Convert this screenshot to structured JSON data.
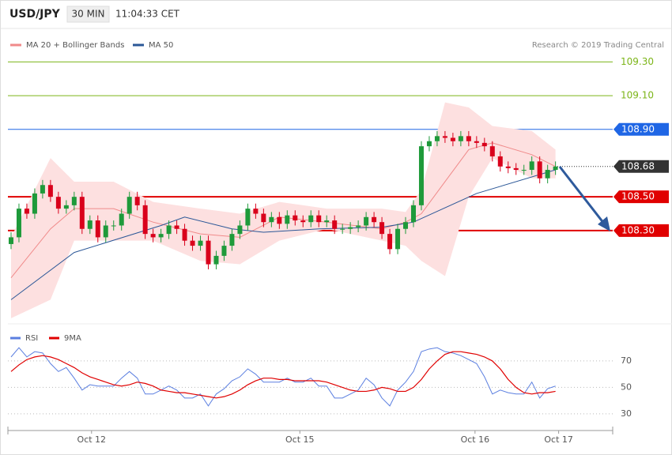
{
  "header": {
    "symbol": "USD/JPY",
    "interval": "30 MIN",
    "time": "11:04:33 CET",
    "credit": "Research © 2019 Trading Central"
  },
  "chart_data": [
    {
      "type": "candlestick",
      "xlim": [
        -0.4,
        76.25
      ],
      "ylim": [
        107.77,
        109.48
      ],
      "candles": {
        "up_color": "#1e9a3a",
        "down_color": "#d9001b",
        "open": [
          108.22,
          108.26,
          108.43,
          108.4,
          108.52,
          108.57,
          108.5,
          108.43,
          108.45,
          108.5,
          108.31,
          108.36,
          108.26,
          108.33,
          108.33,
          108.4,
          108.5,
          108.45,
          108.28,
          108.26,
          108.28,
          108.33,
          108.31,
          108.24,
          108.21,
          108.24,
          108.1,
          108.15,
          108.21,
          108.28,
          108.33,
          108.43,
          108.4,
          108.35,
          108.38,
          108.34,
          108.39,
          108.36,
          108.35,
          108.39,
          108.35,
          108.36,
          108.31,
          108.31,
          108.32,
          108.33,
          108.38,
          108.35,
          108.28,
          108.19,
          108.31,
          108.35,
          108.45,
          108.8,
          108.83,
          108.86,
          108.85,
          108.83,
          108.86,
          108.83,
          108.82,
          108.8,
          108.74,
          108.68,
          108.67,
          108.66,
          108.66,
          108.71,
          108.61,
          108.66
        ],
        "high": [
          108.29,
          108.46,
          108.46,
          108.55,
          108.6,
          108.6,
          108.53,
          108.48,
          108.53,
          108.53,
          108.39,
          108.39,
          108.36,
          108.36,
          108.43,
          108.53,
          108.53,
          108.48,
          108.31,
          108.31,
          108.36,
          108.36,
          108.34,
          108.27,
          108.27,
          108.27,
          108.18,
          108.24,
          108.31,
          108.36,
          108.46,
          108.46,
          108.43,
          108.41,
          108.41,
          108.42,
          108.42,
          108.39,
          108.42,
          108.42,
          108.39,
          108.39,
          108.34,
          108.35,
          108.36,
          108.41,
          108.41,
          108.38,
          108.31,
          108.34,
          108.38,
          108.48,
          108.83,
          108.86,
          108.89,
          108.89,
          108.88,
          108.89,
          108.89,
          108.86,
          108.85,
          108.83,
          108.77,
          108.71,
          108.7,
          108.69,
          108.74,
          108.74,
          108.69,
          108.71
        ],
        "low": [
          108.19,
          108.23,
          108.37,
          108.37,
          108.49,
          108.47,
          108.4,
          108.4,
          108.42,
          108.28,
          108.28,
          108.23,
          108.23,
          108.3,
          108.3,
          108.37,
          108.42,
          108.25,
          108.23,
          108.23,
          108.25,
          108.28,
          108.21,
          108.18,
          108.18,
          108.07,
          108.07,
          108.12,
          108.18,
          108.25,
          108.3,
          108.37,
          108.32,
          108.32,
          108.31,
          108.31,
          108.33,
          108.32,
          108.32,
          108.32,
          108.32,
          108.28,
          108.28,
          108.28,
          108.29,
          108.3,
          108.32,
          108.25,
          108.16,
          108.16,
          108.28,
          108.32,
          108.42,
          108.77,
          108.8,
          108.82,
          108.8,
          108.8,
          108.8,
          108.79,
          108.77,
          108.71,
          108.65,
          108.64,
          108.63,
          108.63,
          108.63,
          108.58,
          108.58,
          108.63
        ],
        "close": [
          108.26,
          108.43,
          108.4,
          108.52,
          108.57,
          108.5,
          108.43,
          108.45,
          108.5,
          108.31,
          108.36,
          108.26,
          108.33,
          108.33,
          108.4,
          108.5,
          108.45,
          108.28,
          108.26,
          108.28,
          108.33,
          108.31,
          108.24,
          108.21,
          108.24,
          108.1,
          108.15,
          108.21,
          108.28,
          108.33,
          108.43,
          108.4,
          108.35,
          108.38,
          108.34,
          108.39,
          108.36,
          108.35,
          108.39,
          108.35,
          108.36,
          108.31,
          108.31,
          108.32,
          108.33,
          108.38,
          108.35,
          108.28,
          108.19,
          108.31,
          108.35,
          108.45,
          108.8,
          108.83,
          108.86,
          108.85,
          108.83,
          108.86,
          108.83,
          108.82,
          108.8,
          108.74,
          108.68,
          108.67,
          108.66,
          108.66,
          108.71,
          108.61,
          108.66,
          108.68
        ]
      },
      "series": [
        {
          "name": "MA 20 + Bollinger Bands",
          "color": "#f08a8a",
          "band_color": "#fde0e0",
          "x": [
            0,
            5,
            8,
            13,
            18,
            24,
            29,
            34,
            40,
            47,
            50,
            52,
            55,
            58,
            61,
            66,
            69
          ],
          "values": [
            108.02,
            108.31,
            108.43,
            108.43,
            108.35,
            108.28,
            108.26,
            108.38,
            108.35,
            108.31,
            108.35,
            108.4,
            108.59,
            108.78,
            108.82,
            108.75,
            108.68
          ],
          "upper": [
            108.26,
            108.73,
            108.59,
            108.59,
            108.47,
            108.43,
            108.4,
            108.47,
            108.43,
            108.43,
            108.41,
            108.54,
            109.06,
            109.03,
            108.92,
            108.89,
            108.78
          ],
          "lower": [
            107.78,
            107.89,
            108.24,
            108.24,
            108.24,
            108.12,
            108.1,
            108.24,
            108.31,
            108.24,
            108.21,
            108.12,
            108.03,
            108.5,
            108.73,
            108.61,
            108.61
          ]
        },
        {
          "name": "MA 50",
          "color": "#2b5797",
          "x": [
            0,
            8,
            19,
            22,
            28,
            32,
            39,
            47,
            51,
            59,
            69
          ],
          "values": [
            107.89,
            108.17,
            108.33,
            108.38,
            108.31,
            108.29,
            108.31,
            108.32,
            108.35,
            108.52,
            108.66
          ]
        }
      ],
      "levels": [
        {
          "value": 109.3,
          "label": "109.30",
          "style": "target",
          "color": "#7cb518"
        },
        {
          "value": 109.1,
          "label": "109.10",
          "style": "target",
          "color": "#7cb518"
        },
        {
          "value": 108.9,
          "label": "108.90",
          "style": "resistance",
          "color": "#1f66e5"
        },
        {
          "value": 108.68,
          "label": "108.68",
          "style": "last",
          "color": "#333333"
        },
        {
          "value": 108.5,
          "label": "108.50",
          "style": "support",
          "color": "#e00000"
        },
        {
          "value": 108.3,
          "label": "108.30",
          "style": "support",
          "color": "#e00000"
        }
      ]
    },
    {
      "type": "line",
      "xlim": [
        -0.4,
        76.25
      ],
      "ylim": [
        20.4,
        98
      ],
      "yticks": [
        30,
        50,
        70
      ],
      "grid": true,
      "xticks": [
        {
          "value": 10.2,
          "label": "Oct 12"
        },
        {
          "value": 36.6,
          "label": "Oct 15"
        },
        {
          "value": 58.8,
          "label": "Oct 16"
        },
        {
          "value": 69.4,
          "label": "Oct 17"
        }
      ],
      "series": [
        {
          "name": "RSI",
          "color": "#5b7fe0",
          "values": [
            73,
            80,
            73,
            77,
            76,
            68,
            62,
            65,
            57,
            48,
            52,
            51,
            51,
            51,
            57,
            62,
            57,
            45,
            45,
            48,
            51,
            48,
            42,
            42,
            45,
            36,
            45,
            49,
            55,
            58,
            64,
            60,
            54,
            54,
            54,
            57,
            54,
            54,
            57,
            51,
            51,
            42,
            42,
            45,
            48,
            57,
            52,
            42,
            36,
            48,
            54,
            62,
            77,
            79,
            80,
            77,
            76,
            74,
            71,
            68,
            58,
            45,
            48,
            46,
            45,
            45,
            54,
            42,
            49,
            51
          ]
        },
        {
          "name": "9MA",
          "color": "#e00000",
          "values": [
            62,
            67,
            71,
            73,
            74,
            73,
            71,
            68,
            65,
            61,
            58,
            56,
            54,
            52,
            51,
            52,
            54,
            53,
            51,
            48,
            47,
            46,
            46,
            45,
            44,
            43,
            42,
            43,
            45,
            48,
            52,
            55,
            57,
            57,
            56,
            56,
            55,
            55,
            55,
            55,
            54,
            52,
            50,
            48,
            47,
            47,
            48,
            50,
            49,
            47,
            47,
            50,
            56,
            64,
            70,
            75,
            77,
            77,
            76,
            75,
            73,
            70,
            64,
            56,
            50,
            46,
            45,
            46,
            46,
            47
          ]
        }
      ]
    }
  ]
}
